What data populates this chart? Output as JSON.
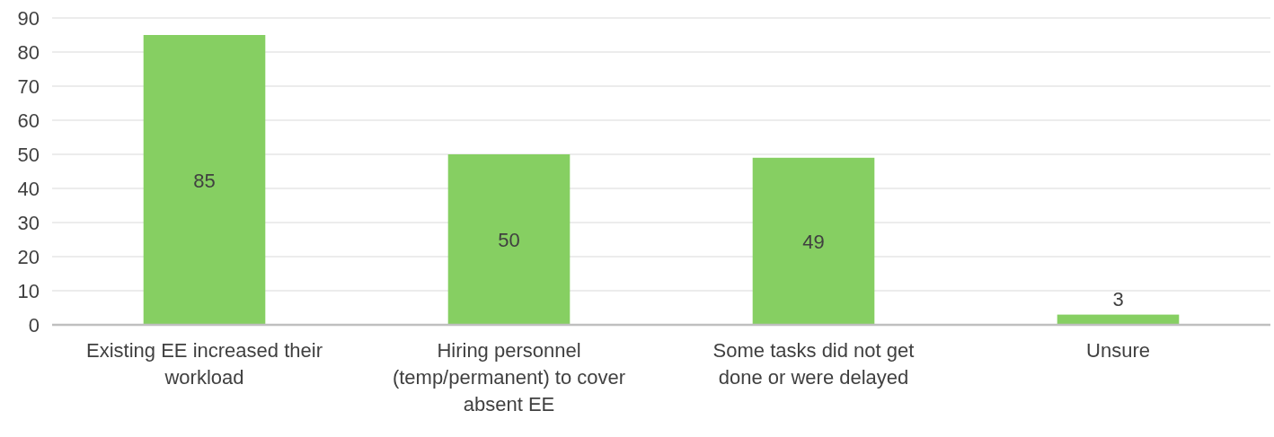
{
  "chart_data": {
    "type": "bar",
    "categories": [
      "Existing EE increased their workload",
      "Hiring personnel (temp/permanent) to cover absent EE",
      "Some tasks did not get done or were delayed",
      "Unsure"
    ],
    "values": [
      85,
      50,
      49,
      3
    ],
    "color": "#86cf62",
    "ylim": [
      0,
      90
    ],
    "yticks": [
      0,
      10,
      20,
      30,
      40,
      50,
      60,
      70,
      80,
      90
    ],
    "grid": "y",
    "data_labels": true
  }
}
